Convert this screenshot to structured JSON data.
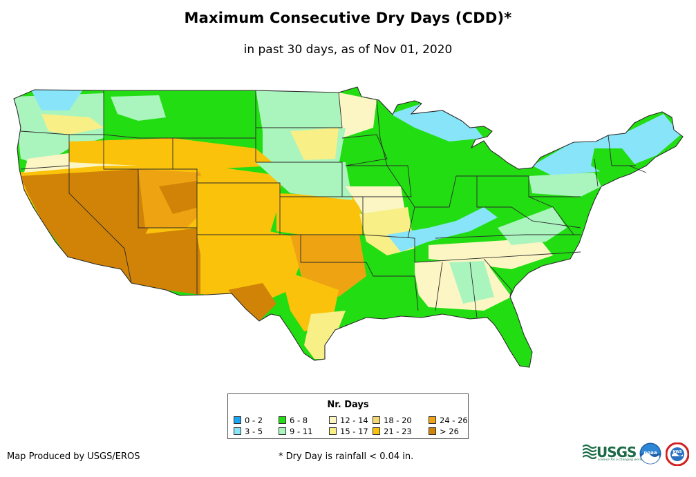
{
  "title": "Maximum Consecutive Dry Days (CDD)*",
  "subtitle": "in past 30 days, as of Nov 01, 2020",
  "legend": {
    "title": "Nr. Days",
    "items": [
      {
        "label": "0 - 2",
        "color": "#1aa5f0"
      },
      {
        "label": "3 - 5",
        "color": "#88e4f8"
      },
      {
        "label": "6 - 8",
        "color": "#22dd11"
      },
      {
        "label": "9 - 11",
        "color": "#aaf5be"
      },
      {
        "label": "12 - 14",
        "color": "#fcf6c5"
      },
      {
        "label": "15 - 17",
        "color": "#f8ef86"
      },
      {
        "label": "18 - 20",
        "color": "#f4d770"
      },
      {
        "label": "21 - 23",
        "color": "#fbc20b"
      },
      {
        "label": "24 - 26",
        "color": "#eea412"
      },
      {
        "label": "> 26",
        "color": "#d08306"
      }
    ]
  },
  "credit": "Map Produced by USGS/EROS",
  "footnote": "* Dry Day is rainfall < 0.04 in.",
  "logos": {
    "usgs_text": "USGS",
    "usgs_tagline": "science for a changing world",
    "noaa_text": "noaa",
    "nws_text": "NWS"
  }
}
